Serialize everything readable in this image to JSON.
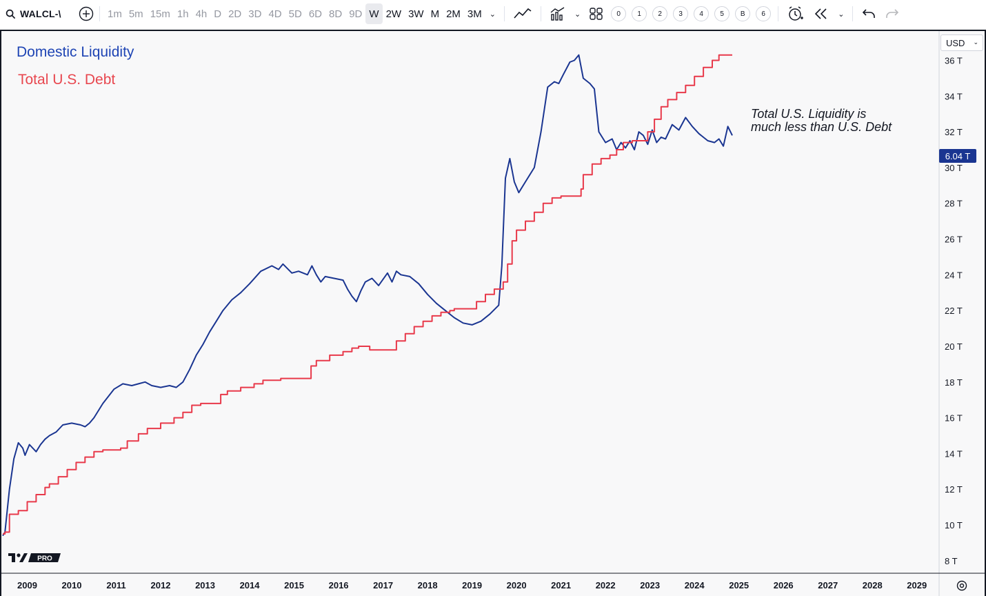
{
  "toolbar": {
    "symbol": "WALCL-\\",
    "intervals": [
      "1m",
      "5m",
      "15m",
      "1h",
      "4h",
      "D",
      "2D",
      "3D",
      "4D",
      "5D",
      "6D",
      "8D",
      "9D",
      "W",
      "2W",
      "3W",
      "M",
      "2M",
      "3M"
    ],
    "active_interval": "W",
    "numbered": [
      "0",
      "1",
      "2",
      "3",
      "4",
      "5",
      "B",
      "6"
    ]
  },
  "legend": {
    "series1": "Domestic Liquidity",
    "series2": "Total U.S. Debt"
  },
  "annotation": {
    "line1": "Total U.S. Liquidity is",
    "line2": "much less than U.S. Debt"
  },
  "price_scale": {
    "currency": "USD",
    "last_price_label": "6.04 T"
  },
  "logo_text": "PRO",
  "colors": {
    "liquidity": "#1a3591",
    "debt": "#e8394a",
    "background": "#f8f8f9"
  },
  "chart_data": {
    "type": "line",
    "x_unit": "year",
    "y_unit": "trillions USD",
    "xlim": [
      2008.95,
      2030.0
    ],
    "ylim": [
      7.3,
      37.6
    ],
    "y_ticks": [
      8,
      10,
      12,
      14,
      16,
      18,
      20,
      22,
      24,
      26,
      28,
      30,
      32,
      34,
      36
    ],
    "y_tick_labels": [
      "8 T",
      "10 T",
      "12 T",
      "14 T",
      "16 T",
      "18 T",
      "20 T",
      "22 T",
      "24 T",
      "26 T",
      "28 T",
      "30 T",
      "32 T",
      "34 T",
      "36 T"
    ],
    "x_ticks": [
      2009,
      2010,
      2011,
      2012,
      2013,
      2014,
      2015,
      2016,
      2017,
      2018,
      2019,
      2020,
      2021,
      2022,
      2023,
      2024,
      2025,
      2026,
      2027,
      2028,
      2029
    ],
    "x_tick_labels": [
      "2009",
      "2010",
      "2011",
      "2012",
      "2013",
      "2014",
      "2015",
      "2016",
      "2017",
      "2018",
      "2019",
      "2020",
      "2021",
      "2022",
      "2023",
      "2024",
      "2025",
      "2026",
      "2027",
      "2028",
      "2029"
    ],
    "grid": false,
    "series": [
      {
        "name": "Domestic Liquidity",
        "color": "#1a3591",
        "points": [
          [
            2008.95,
            9.4
          ],
          [
            2009.0,
            9.6
          ],
          [
            2009.1,
            12.0
          ],
          [
            2009.2,
            13.7
          ],
          [
            2009.3,
            14.6
          ],
          [
            2009.4,
            14.3
          ],
          [
            2009.45,
            13.9
          ],
          [
            2009.55,
            14.5
          ],
          [
            2009.7,
            14.1
          ],
          [
            2009.8,
            14.5
          ],
          [
            2009.9,
            14.8
          ],
          [
            2010.0,
            15.0
          ],
          [
            2010.15,
            15.2
          ],
          [
            2010.3,
            15.6
          ],
          [
            2010.5,
            15.7
          ],
          [
            2010.7,
            15.6
          ],
          [
            2010.8,
            15.5
          ],
          [
            2010.9,
            15.7
          ],
          [
            2011.0,
            16.0
          ],
          [
            2011.2,
            16.8
          ],
          [
            2011.45,
            17.6
          ],
          [
            2011.65,
            17.9
          ],
          [
            2011.85,
            17.8
          ],
          [
            2012.0,
            17.9
          ],
          [
            2012.15,
            18.0
          ],
          [
            2012.3,
            17.8
          ],
          [
            2012.5,
            17.7
          ],
          [
            2012.7,
            17.8
          ],
          [
            2012.85,
            17.7
          ],
          [
            2013.0,
            18.0
          ],
          [
            2013.15,
            18.7
          ],
          [
            2013.3,
            19.5
          ],
          [
            2013.45,
            20.1
          ],
          [
            2013.6,
            20.8
          ],
          [
            2013.75,
            21.4
          ],
          [
            2013.9,
            22.0
          ],
          [
            2014.1,
            22.6
          ],
          [
            2014.3,
            23.0
          ],
          [
            2014.5,
            23.5
          ],
          [
            2014.75,
            24.2
          ],
          [
            2015.0,
            24.5
          ],
          [
            2015.15,
            24.3
          ],
          [
            2015.25,
            24.6
          ],
          [
            2015.45,
            24.1
          ],
          [
            2015.6,
            24.2
          ],
          [
            2015.8,
            24.0
          ],
          [
            2015.9,
            24.5
          ],
          [
            2016.0,
            24.0
          ],
          [
            2016.1,
            23.6
          ],
          [
            2016.2,
            23.9
          ],
          [
            2016.4,
            23.8
          ],
          [
            2016.6,
            23.7
          ],
          [
            2016.7,
            23.2
          ],
          [
            2016.8,
            22.8
          ],
          [
            2016.9,
            22.5
          ],
          [
            2017.0,
            23.1
          ],
          [
            2017.1,
            23.6
          ],
          [
            2017.25,
            23.8
          ],
          [
            2017.4,
            23.4
          ],
          [
            2017.6,
            24.1
          ],
          [
            2017.7,
            23.6
          ],
          [
            2017.8,
            24.2
          ],
          [
            2017.9,
            24.0
          ],
          [
            2018.1,
            23.9
          ],
          [
            2018.3,
            23.5
          ],
          [
            2018.5,
            22.9
          ],
          [
            2018.7,
            22.4
          ],
          [
            2018.9,
            22.0
          ],
          [
            2019.1,
            21.6
          ],
          [
            2019.3,
            21.3
          ],
          [
            2019.5,
            21.2
          ],
          [
            2019.7,
            21.4
          ],
          [
            2019.9,
            21.8
          ],
          [
            2020.1,
            22.3
          ],
          [
            2020.17,
            24.5
          ],
          [
            2020.25,
            29.4
          ],
          [
            2020.35,
            30.5
          ],
          [
            2020.45,
            29.2
          ],
          [
            2020.55,
            28.6
          ],
          [
            2020.7,
            29.2
          ],
          [
            2020.9,
            30.0
          ],
          [
            2021.05,
            32.0
          ],
          [
            2021.2,
            34.5
          ],
          [
            2021.35,
            34.8
          ],
          [
            2021.45,
            34.7
          ],
          [
            2021.55,
            35.2
          ],
          [
            2021.7,
            35.9
          ],
          [
            2021.8,
            36.0
          ],
          [
            2021.9,
            36.3
          ],
          [
            2022.0,
            35.0
          ],
          [
            2022.15,
            34.7
          ],
          [
            2022.25,
            34.4
          ],
          [
            2022.35,
            32.0
          ],
          [
            2022.5,
            31.4
          ],
          [
            2022.65,
            31.6
          ],
          [
            2022.75,
            31.0
          ],
          [
            2022.85,
            31.4
          ],
          [
            2022.95,
            31.1
          ],
          [
            2023.05,
            31.5
          ],
          [
            2023.15,
            31.0
          ],
          [
            2023.25,
            32.0
          ],
          [
            2023.35,
            31.8
          ],
          [
            2023.45,
            31.3
          ],
          [
            2023.55,
            32.1
          ],
          [
            2023.65,
            31.4
          ],
          [
            2023.75,
            31.7
          ],
          [
            2023.85,
            31.6
          ],
          [
            2024.0,
            32.4
          ],
          [
            2024.15,
            32.1
          ],
          [
            2024.3,
            32.8
          ],
          [
            2024.45,
            32.3
          ],
          [
            2024.6,
            31.9
          ],
          [
            2024.8,
            31.5
          ],
          [
            2024.95,
            31.4
          ],
          [
            2025.05,
            31.6
          ],
          [
            2025.15,
            31.2
          ],
          [
            2025.25,
            32.3
          ],
          [
            2025.35,
            31.8
          ]
        ]
      },
      {
        "name": "Total U.S. Debt",
        "color": "#e8394a",
        "points": [
          [
            2008.95,
            9.5
          ],
          [
            2009.0,
            9.6
          ],
          [
            2009.1,
            10.6
          ],
          [
            2009.3,
            10.8
          ],
          [
            2009.5,
            11.3
          ],
          [
            2009.7,
            11.7
          ],
          [
            2009.9,
            12.1
          ],
          [
            2010.0,
            12.3
          ],
          [
            2010.2,
            12.7
          ],
          [
            2010.4,
            13.1
          ],
          [
            2010.6,
            13.5
          ],
          [
            2010.8,
            13.8
          ],
          [
            2011.0,
            14.1
          ],
          [
            2011.2,
            14.2
          ],
          [
            2011.6,
            14.3
          ],
          [
            2011.75,
            14.7
          ],
          [
            2012.0,
            15.1
          ],
          [
            2012.2,
            15.4
          ],
          [
            2012.5,
            15.7
          ],
          [
            2012.8,
            16.0
          ],
          [
            2013.0,
            16.3
          ],
          [
            2013.2,
            16.7
          ],
          [
            2013.4,
            16.8
          ],
          [
            2013.8,
            16.8
          ],
          [
            2013.85,
            17.3
          ],
          [
            2014.0,
            17.5
          ],
          [
            2014.3,
            17.7
          ],
          [
            2014.6,
            17.9
          ],
          [
            2014.8,
            18.1
          ],
          [
            2015.0,
            18.1
          ],
          [
            2015.2,
            18.2
          ],
          [
            2015.6,
            18.2
          ],
          [
            2015.85,
            18.2
          ],
          [
            2015.88,
            18.9
          ],
          [
            2016.0,
            19.2
          ],
          [
            2016.3,
            19.5
          ],
          [
            2016.6,
            19.7
          ],
          [
            2016.8,
            19.9
          ],
          [
            2016.95,
            20.0
          ],
          [
            2017.2,
            19.8
          ],
          [
            2017.65,
            19.8
          ],
          [
            2017.8,
            20.3
          ],
          [
            2018.0,
            20.7
          ],
          [
            2018.2,
            21.1
          ],
          [
            2018.4,
            21.4
          ],
          [
            2018.6,
            21.7
          ],
          [
            2018.8,
            21.9
          ],
          [
            2019.0,
            22.0
          ],
          [
            2019.1,
            22.1
          ],
          [
            2019.5,
            22.1
          ],
          [
            2019.6,
            22.5
          ],
          [
            2019.8,
            22.9
          ],
          [
            2020.0,
            23.2
          ],
          [
            2020.2,
            23.6
          ],
          [
            2020.3,
            24.6
          ],
          [
            2020.4,
            25.9
          ],
          [
            2020.5,
            26.5
          ],
          [
            2020.7,
            27.0
          ],
          [
            2020.9,
            27.5
          ],
          [
            2021.1,
            28.0
          ],
          [
            2021.3,
            28.3
          ],
          [
            2021.5,
            28.4
          ],
          [
            2021.7,
            28.4
          ],
          [
            2021.95,
            28.8
          ],
          [
            2022.0,
            29.6
          ],
          [
            2022.2,
            30.2
          ],
          [
            2022.4,
            30.5
          ],
          [
            2022.6,
            30.7
          ],
          [
            2022.75,
            31.0
          ],
          [
            2022.9,
            31.4
          ],
          [
            2023.1,
            31.5
          ],
          [
            2023.4,
            31.5
          ],
          [
            2023.45,
            32.0
          ],
          [
            2023.6,
            32.7
          ],
          [
            2023.75,
            33.4
          ],
          [
            2023.9,
            33.8
          ],
          [
            2024.1,
            34.2
          ],
          [
            2024.3,
            34.6
          ],
          [
            2024.5,
            35.1
          ],
          [
            2024.7,
            35.6
          ],
          [
            2024.9,
            36.0
          ],
          [
            2025.05,
            36.3
          ],
          [
            2025.2,
            36.3
          ],
          [
            2025.35,
            36.3
          ]
        ]
      }
    ]
  }
}
